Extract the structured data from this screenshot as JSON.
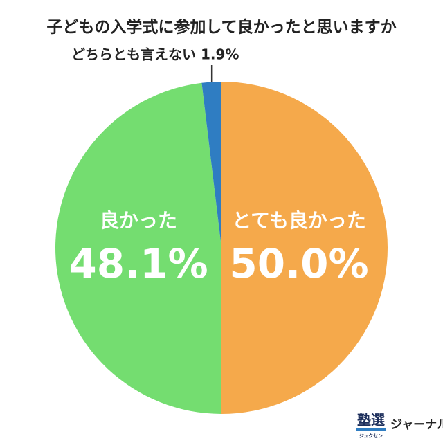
{
  "chart_data": {
    "type": "pie",
    "title": "子どもの入学式に参加して良かったと思いますか",
    "categories": [
      "とても良かった",
      "良かった",
      "どちらとも言えない"
    ],
    "values": [
      50.0,
      48.1,
      1.9
    ],
    "value_labels": [
      "50.0%",
      "48.1%",
      "1.9%"
    ],
    "colors": [
      "#f5a94b",
      "#74dd70",
      "#2f7dc2"
    ]
  },
  "logo": {
    "main": "塾選",
    "sub": "ジュクセン",
    "text": "ジャーナル"
  }
}
